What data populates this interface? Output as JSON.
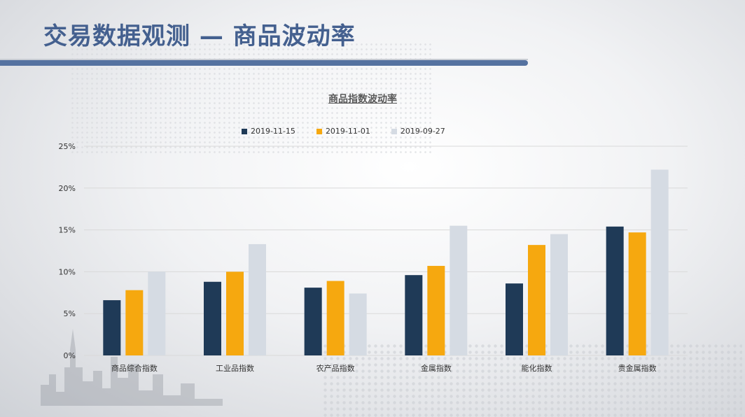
{
  "slide": {
    "title": "交易数据观测 — 商品波动率"
  },
  "colors": {
    "series1": "#1f3a57",
    "series2": "#f6a80f",
    "series3": "#d5dbe3",
    "grid": "#d9d9d9"
  },
  "chart_data": {
    "type": "bar",
    "title": "商品指数波动率",
    "categories": [
      "商品综合指数",
      "工业品指数",
      "农产品指数",
      "金属指数",
      "能化指数",
      "贵金属指数"
    ],
    "series": [
      {
        "name": "2019-11-15",
        "values": [
          6.6,
          8.8,
          8.1,
          9.6,
          8.6,
          15.4
        ]
      },
      {
        "name": "2019-11-01",
        "values": [
          7.8,
          10.0,
          8.9,
          10.7,
          13.2,
          14.7
        ]
      },
      {
        "name": "2019-09-27",
        "values": [
          10.0,
          13.3,
          7.4,
          15.5,
          14.5,
          22.2
        ]
      }
    ],
    "ylim": [
      0,
      25
    ],
    "yticks": [
      "0%",
      "5%",
      "10%",
      "15%",
      "20%",
      "25%"
    ],
    "ytick_values": [
      0,
      5,
      10,
      15,
      20,
      25
    ],
    "legend_position": "top",
    "grid": true
  }
}
